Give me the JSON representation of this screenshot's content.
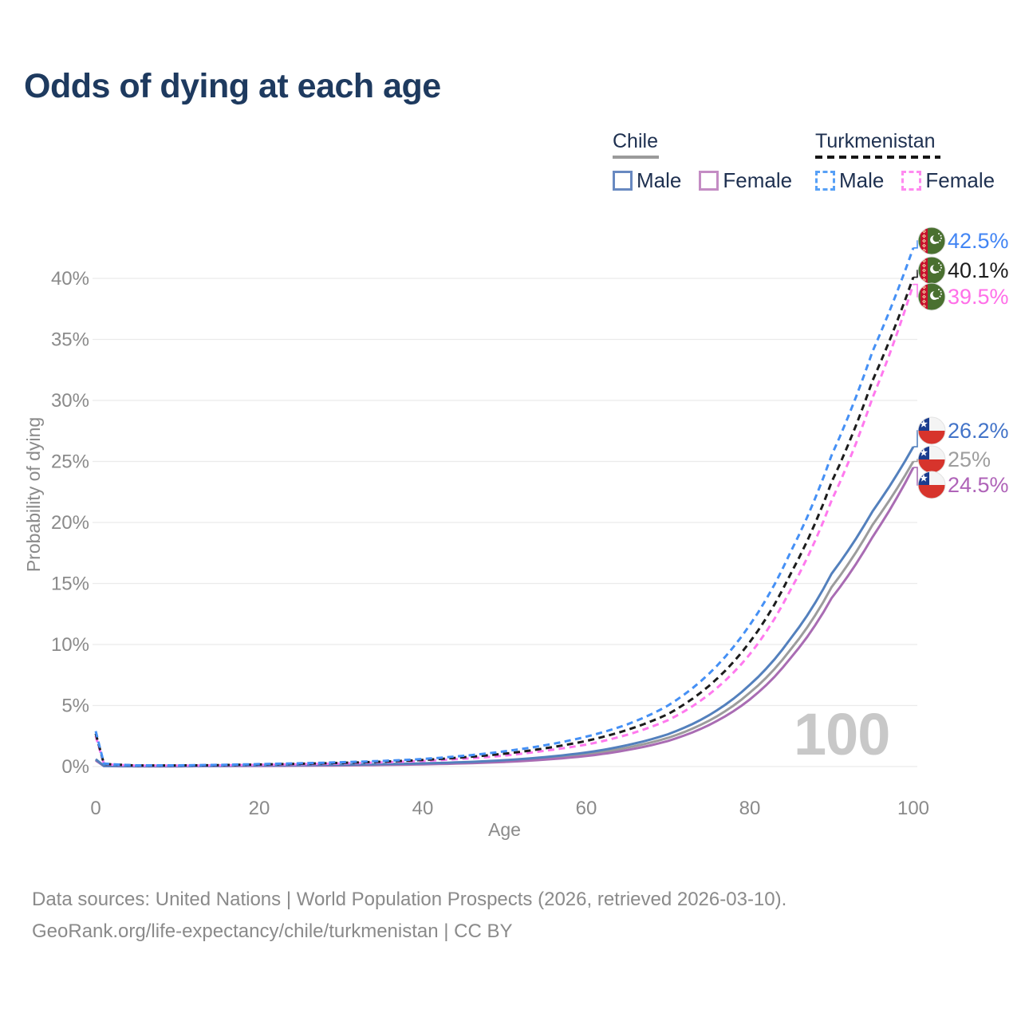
{
  "title": "Odds of dying at each age",
  "legend": {
    "groups": [
      {
        "name": "Chile",
        "line_style": "solid",
        "underline_color": "#9a9a9a",
        "items": [
          {
            "label": "Male",
            "color": "#6889c1"
          },
          {
            "label": "Female",
            "color": "#c48cc4"
          }
        ]
      },
      {
        "name": "Turkmenistan",
        "line_style": "dashed",
        "underline_color": "#161616",
        "items": [
          {
            "label": "Male",
            "color": "#57a0f6"
          },
          {
            "label": "Female",
            "color": "#ff8af0"
          }
        ]
      }
    ]
  },
  "watermark": "100",
  "footer": {
    "line1": "Data sources: United Nations | World Population Prospects (2026, retrieved 2026-03-10).",
    "line2": "GeoRank.org/life-expectancy/chile/turkmenistan | CC BY"
  },
  "chart_data": {
    "type": "line",
    "title": "Odds of dying at each age",
    "xlabel": "Age",
    "ylabel": "Probability of dying",
    "x_range": [
      0,
      100
    ],
    "y_range_pct": [
      0,
      43
    ],
    "x_ticks": [
      0,
      20,
      40,
      60,
      80,
      100
    ],
    "y_ticks_pct": [
      0,
      5,
      10,
      15,
      20,
      25,
      30,
      35,
      40
    ],
    "grid": "horizontal",
    "legend_position": "top-right",
    "ages": [
      0,
      1,
      5,
      10,
      15,
      20,
      25,
      30,
      35,
      40,
      45,
      50,
      55,
      60,
      65,
      70,
      75,
      80,
      85,
      90,
      95,
      100
    ],
    "series": [
      {
        "id": "tm_male",
        "name": "Turkmenistan Male",
        "country": "Turkmenistan",
        "group": "Male",
        "dash": true,
        "color": "#4590f5",
        "label_color": "#4285f4",
        "end_label": "42.5%",
        "end_value_pct": 42.5,
        "values_pct": [
          2.9,
          0.25,
          0.1,
          0.1,
          0.14,
          0.2,
          0.27,
          0.35,
          0.46,
          0.62,
          0.88,
          1.25,
          1.75,
          2.45,
          3.45,
          5.0,
          7.6,
          11.6,
          17.6,
          25.5,
          34.0,
          42.5
        ]
      },
      {
        "id": "tm_total",
        "name": "Turkmenistan Total",
        "country": "Turkmenistan",
        "group": "Total",
        "dash": true,
        "color": "#1c1c1c",
        "label_color": "#1c1c1c",
        "end_label": "40.1%",
        "end_value_pct": 40.1,
        "values_pct": [
          2.7,
          0.22,
          0.09,
          0.09,
          0.12,
          0.17,
          0.23,
          0.3,
          0.4,
          0.54,
          0.76,
          1.05,
          1.5,
          2.1,
          3.0,
          4.3,
          6.6,
          10.2,
          15.8,
          23.3,
          31.6,
          40.1
        ]
      },
      {
        "id": "tm_female",
        "name": "Turkmenistan Female",
        "country": "Turkmenistan",
        "group": "Female",
        "dash": true,
        "color": "#ff79ee",
        "label_color": "#ff6fe8",
        "end_label": "39.5%",
        "end_value_pct": 39.5,
        "values_pct": [
          2.5,
          0.2,
          0.08,
          0.08,
          0.1,
          0.14,
          0.19,
          0.25,
          0.34,
          0.46,
          0.64,
          0.9,
          1.3,
          1.8,
          2.6,
          3.8,
          5.9,
          9.2,
          14.5,
          21.8,
          30.2,
          39.5
        ]
      },
      {
        "id": "cl_male",
        "name": "Chile Male",
        "country": "Chile",
        "group": "Male",
        "dash": false,
        "color": "#5380bd",
        "label_color": "#4273c8",
        "end_label": "26.2%",
        "end_value_pct": 26.2,
        "values_pct": [
          0.6,
          0.05,
          0.03,
          0.03,
          0.06,
          0.09,
          0.12,
          0.15,
          0.2,
          0.26,
          0.36,
          0.52,
          0.78,
          1.15,
          1.75,
          2.65,
          4.2,
          6.7,
          10.5,
          15.8,
          20.9,
          26.2
        ]
      },
      {
        "id": "cl_total",
        "name": "Chile Total",
        "country": "Chile",
        "group": "Total",
        "dash": false,
        "color": "#9c9c9c",
        "label_color": "#9e9e9e",
        "end_label": "25%",
        "end_value_pct": 25.0,
        "values_pct": [
          0.55,
          0.045,
          0.025,
          0.025,
          0.05,
          0.07,
          0.09,
          0.12,
          0.16,
          0.22,
          0.31,
          0.45,
          0.67,
          1.0,
          1.55,
          2.35,
          3.75,
          6.05,
          9.6,
          14.7,
          19.8,
          25.0
        ]
      },
      {
        "id": "cl_female",
        "name": "Chile Female",
        "country": "Chile",
        "group": "Female",
        "dash": false,
        "color": "#a96cb3",
        "label_color": "#af63b8",
        "end_label": "24.5%",
        "end_value_pct": 24.5,
        "values_pct": [
          0.5,
          0.04,
          0.02,
          0.02,
          0.04,
          0.05,
          0.07,
          0.09,
          0.13,
          0.18,
          0.26,
          0.38,
          0.57,
          0.86,
          1.35,
          2.1,
          3.4,
          5.5,
          8.9,
          13.8,
          18.8,
          24.5
        ]
      }
    ]
  }
}
